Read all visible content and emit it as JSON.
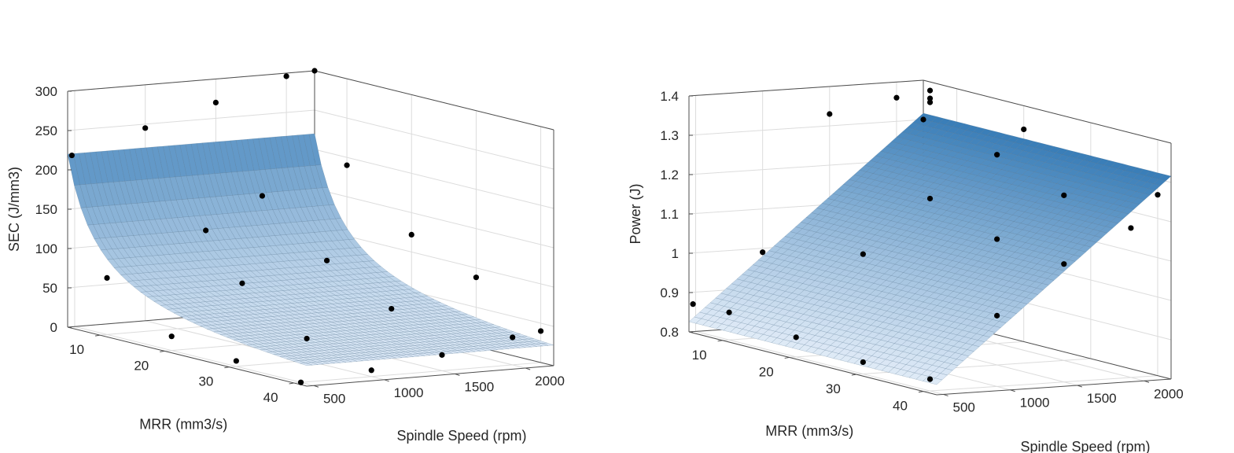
{
  "chart_data": [
    {
      "type": "surface",
      "xlabel": "MRR (mm3/s)",
      "ylabel": "Spindle Speed (rpm)",
      "zlabel": "SEC (J/mm3)",
      "xlim": [
        5,
        42
      ],
      "ylim": [
        450,
        2200
      ],
      "zlim": [
        0,
        300
      ],
      "xticks": [
        10,
        20,
        30,
        40
      ],
      "yticks": [
        500,
        1000,
        1500,
        2000
      ],
      "zticks": [
        0,
        50,
        100,
        150,
        200,
        250,
        300
      ],
      "grid": true,
      "colormap": [
        "#0f62a8",
        "#e8f0fa"
      ],
      "surface": {
        "model": "z = a / x^p",
        "a": 1100,
        "p": 1.0
      },
      "points": [
        {
          "x": 5,
          "y": 480,
          "z": 218
        },
        {
          "x": 5,
          "y": 1000,
          "z": 245
        },
        {
          "x": 5,
          "y": 1500,
          "z": 270
        },
        {
          "x": 5,
          "y": 2000,
          "z": 296
        },
        {
          "x": 5,
          "y": 2200,
          "z": 300
        },
        {
          "x": 10,
          "y": 500,
          "z": 72
        },
        {
          "x": 10,
          "y": 1200,
          "z": 122
        },
        {
          "x": 10,
          "y": 1600,
          "z": 160
        },
        {
          "x": 10,
          "y": 2200,
          "z": 190
        },
        {
          "x": 20,
          "y": 500,
          "z": 18
        },
        {
          "x": 20,
          "y": 1000,
          "z": 78
        },
        {
          "x": 20,
          "y": 1600,
          "z": 98
        },
        {
          "x": 20,
          "y": 2200,
          "z": 122
        },
        {
          "x": 30,
          "y": 500,
          "z": 7
        },
        {
          "x": 30,
          "y": 1000,
          "z": 28
        },
        {
          "x": 30,
          "y": 1600,
          "z": 57
        },
        {
          "x": 30,
          "y": 2200,
          "z": 88
        },
        {
          "x": 40,
          "y": 500,
          "z": 0
        },
        {
          "x": 40,
          "y": 1000,
          "z": 8
        },
        {
          "x": 40,
          "y": 1500,
          "z": 20
        },
        {
          "x": 40,
          "y": 2000,
          "z": 35
        },
        {
          "x": 40,
          "y": 2200,
          "z": 40
        }
      ]
    },
    {
      "type": "surface",
      "xlabel": "MRR (mm3/s)",
      "ylabel": "Spindle Speed (rpm)",
      "zlabel": "Power (J)",
      "xlim": [
        5,
        42
      ],
      "ylim": [
        450,
        2200
      ],
      "zlim": [
        0.8,
        1.4
      ],
      "xticks": [
        10,
        20,
        30,
        40
      ],
      "yticks": [
        500,
        1000,
        1500,
        2000
      ],
      "zticks": [
        0.8,
        0.9,
        1,
        1.1,
        1.2,
        1.3,
        1.4
      ],
      "ztick_labels": [
        "0.8",
        "0.9",
        "1",
        "1.1",
        "1.2",
        "1.3",
        "1.4"
      ],
      "grid": true,
      "colormap": [
        "#0f62a8",
        "#e8f0fa"
      ],
      "surface": {
        "model": "z = b0 + b1*x + b2*y",
        "b0": 0.7,
        "b1": 0.0,
        "b2": 0.00028
      },
      "points": [
        {
          "x": 5,
          "y": 480,
          "z": 0.87
        },
        {
          "x": 10,
          "y": 500,
          "z": 0.87
        },
        {
          "x": 20,
          "y": 500,
          "z": 0.85
        },
        {
          "x": 30,
          "y": 500,
          "z": 0.83
        },
        {
          "x": 40,
          "y": 500,
          "z": 0.83
        },
        {
          "x": 5,
          "y": 1000,
          "z": 0.99
        },
        {
          "x": 20,
          "y": 1000,
          "z": 1.05
        },
        {
          "x": 40,
          "y": 1000,
          "z": 0.98
        },
        {
          "x": 5,
          "y": 1500,
          "z": 1.33
        },
        {
          "x": 20,
          "y": 1500,
          "z": 1.18
        },
        {
          "x": 30,
          "y": 1500,
          "z": 1.12
        },
        {
          "x": 40,
          "y": 1500,
          "z": 1.1
        },
        {
          "x": 5,
          "y": 2000,
          "z": 1.36
        },
        {
          "x": 10,
          "y": 2000,
          "z": 1.4
        },
        {
          "x": 10,
          "y": 2000,
          "z": 1.38
        },
        {
          "x": 10,
          "y": 2000,
          "z": 1.37
        },
        {
          "x": 20,
          "y": 2000,
          "z": 1.28
        },
        {
          "x": 30,
          "y": 2000,
          "z": 1.22
        },
        {
          "x": 40,
          "y": 2000,
          "z": 1.18
        },
        {
          "x": 5,
          "y": 2200,
          "z": 1.3
        },
        {
          "x": 20,
          "y": 2200,
          "z": 1.34
        },
        {
          "x": 40,
          "y": 2200,
          "z": 1.26
        }
      ]
    }
  ]
}
